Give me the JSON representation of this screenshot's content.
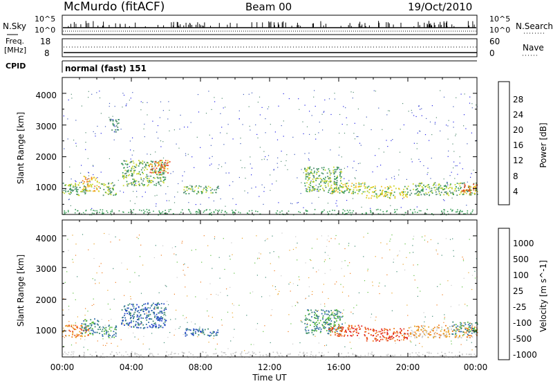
{
  "header": {
    "station": "McMurdo (fitACF)",
    "beam": "Beam 00",
    "date": "19/Oct/2010"
  },
  "colors": {
    "accent_bg": "#ffffff",
    "ink": "#000000",
    "power_scale": [
      "#1e1ee6",
      "#3a55b8",
      "#4f8a6e",
      "#3c9e5a",
      "#c8d832",
      "#f0c020",
      "#f08020",
      "#e83c1a",
      "#e02020"
    ],
    "velocity_scale": [
      "#2040c8",
      "#2e6aa8",
      "#3a8870",
      "#5cbf3c",
      "#c8c8c8",
      "#e8a020",
      "#f07818",
      "#e84818",
      "#e01818"
    ]
  },
  "strips": {
    "nsky_label": "N.Sky",
    "nsearch_label": "N.Search",
    "nsky_ticks": [
      "10^5",
      "10^0"
    ],
    "nsearch_ticks": [
      "10^5",
      "10^0"
    ],
    "freq_label_1": "Freq.",
    "freq_label_2": "[MHz]",
    "freq_ticks": [
      "18",
      "8"
    ],
    "nave_label": "Nave",
    "nave_ticks": [
      "60",
      "0"
    ],
    "cpid_label": "CPID",
    "cpid_value": "normal (fast) 151"
  },
  "chart_data": [
    {
      "type": "heatmap",
      "name": "power",
      "ylabel": "Slant Range [km]",
      "yticks": [
        "1000",
        "2000",
        "3000",
        "4000"
      ],
      "ylim": [
        180,
        4500
      ],
      "xlim": [
        "00:00",
        "24:00"
      ],
      "colorbar": {
        "label": "Power [dB]",
        "ticks": [
          "4",
          "8",
          "12",
          "16",
          "20",
          "24",
          "28"
        ],
        "range": [
          0,
          30
        ]
      },
      "echo_regions": [
        {
          "t0": 0.0,
          "t1": 1.5,
          "r0": 800,
          "r1": 1200,
          "level": 12
        },
        {
          "t0": 1.1,
          "t1": 2.1,
          "r0": 900,
          "r1": 1400,
          "level": 18
        },
        {
          "t0": 2.1,
          "t1": 3.1,
          "r0": 800,
          "r1": 1200,
          "level": 12
        },
        {
          "t0": 2.7,
          "t1": 3.3,
          "r0": 2800,
          "r1": 3200,
          "level": 8
        },
        {
          "t0": 3.4,
          "t1": 6.0,
          "r0": 1100,
          "r1": 1900,
          "level": 12
        },
        {
          "t0": 5.0,
          "t1": 6.2,
          "r0": 1500,
          "r1": 1900,
          "level": 20
        },
        {
          "t0": 7.0,
          "t1": 9.0,
          "r0": 850,
          "r1": 1100,
          "level": 10
        },
        {
          "t0": 14.0,
          "t1": 16.2,
          "r0": 900,
          "r1": 1700,
          "level": 12
        },
        {
          "t0": 15.4,
          "t1": 17.5,
          "r0": 850,
          "r1": 1200,
          "level": 16
        },
        {
          "t0": 17.5,
          "t1": 20.0,
          "r0": 700,
          "r1": 1100,
          "level": 14
        },
        {
          "t0": 20.0,
          "t1": 24.0,
          "r0": 800,
          "r1": 1200,
          "level": 10
        },
        {
          "t0": 23.0,
          "t1": 24.0,
          "r0": 850,
          "r1": 1150,
          "level": 22
        }
      ]
    },
    {
      "type": "heatmap",
      "name": "velocity",
      "ylabel": "Slant Range [km]",
      "yticks": [
        "1000",
        "2000",
        "3000",
        "4000"
      ],
      "ylim": [
        180,
        4500
      ],
      "xlim": [
        "00:00",
        "24:00"
      ],
      "xticks": [
        "00:00",
        "04:00",
        "08:00",
        "12:00",
        "16:00",
        "20:00",
        "00:00"
      ],
      "xlabel": "Time UT",
      "colorbar": {
        "label": "Velocity [m s^-1]",
        "ticks": [
          "1000",
          "500",
          "100",
          "25",
          "-25",
          "-100",
          "-500",
          "-1000"
        ]
      },
      "echo_regions": [
        {
          "t0": 0.0,
          "t1": 1.5,
          "r0": 800,
          "r1": 1200,
          "vel": -100
        },
        {
          "t0": 1.1,
          "t1": 2.1,
          "r0": 900,
          "r1": 1400,
          "vel": 100
        },
        {
          "t0": 2.1,
          "t1": 3.1,
          "r0": 800,
          "r1": 1200,
          "vel": 100
        },
        {
          "t0": 3.4,
          "t1": 6.0,
          "r0": 1100,
          "r1": 1900,
          "vel": 500
        },
        {
          "t0": 7.0,
          "t1": 9.0,
          "r0": 850,
          "r1": 1100,
          "vel": 500
        },
        {
          "t0": 14.0,
          "t1": 16.2,
          "r0": 900,
          "r1": 1700,
          "vel": 100
        },
        {
          "t0": 15.4,
          "t1": 17.5,
          "r0": 850,
          "r1": 1200,
          "vel": -500
        },
        {
          "t0": 17.5,
          "t1": 20.0,
          "r0": 700,
          "r1": 1100,
          "vel": -500
        },
        {
          "t0": 20.0,
          "t1": 24.0,
          "r0": 800,
          "r1": 1200,
          "vel": -25
        },
        {
          "t0": 22.5,
          "t1": 24.0,
          "r0": 900,
          "r1": 1300,
          "vel": 100
        }
      ]
    }
  ]
}
